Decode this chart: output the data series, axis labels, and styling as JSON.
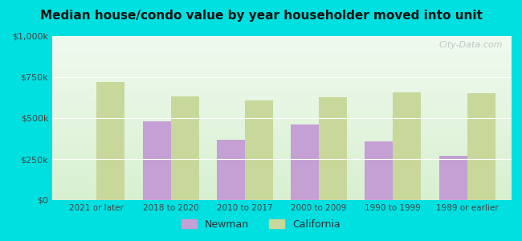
{
  "title": "Median house/condo value by year householder moved into unit",
  "categories": [
    "2021 or later",
    "2018 to 2020",
    "2010 to 2017",
    "2000 to 2009",
    "1990 to 1999",
    "1989 or earlier"
  ],
  "newman_values": [
    null,
    480000,
    370000,
    460000,
    360000,
    270000
  ],
  "california_values": [
    720000,
    630000,
    610000,
    625000,
    655000,
    650000
  ],
  "newman_color": "#c4a0d4",
  "california_color": "#c8d89a",
  "background_color": "#00e0e0",
  "plot_bg_top": "#f0faf0",
  "plot_bg_bottom": "#d8f0d0",
  "ylim": [
    0,
    1000000
  ],
  "yticks": [
    0,
    250000,
    500000,
    750000,
    1000000
  ],
  "ytick_labels": [
    "$0",
    "$250k",
    "$500k",
    "$750k",
    "$1,000k"
  ],
  "legend_newman": "Newman",
  "legend_california": "California",
  "watermark": "City-Data.com",
  "bar_width": 0.38
}
